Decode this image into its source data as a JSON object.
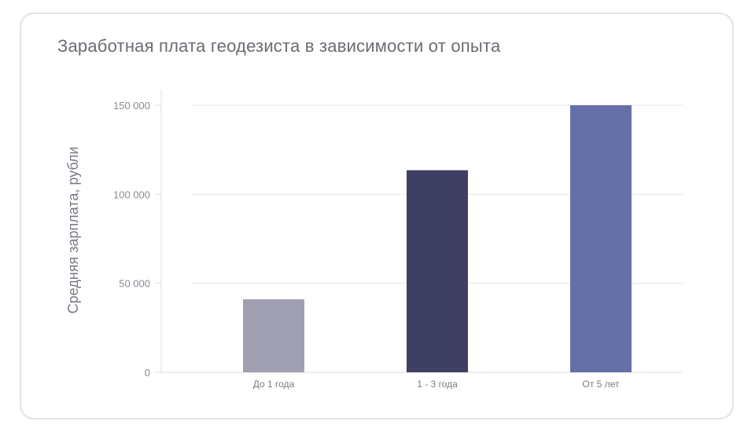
{
  "chart_data": {
    "type": "bar",
    "title": "Заработная плата геодезиста в зависимости от опыта",
    "xlabel": "",
    "ylabel": "Средняя зарплата, рубли",
    "categories": [
      "До 1 года",
      "1 - 3 года",
      "От 5 лет"
    ],
    "values": [
      41000,
      113500,
      150000
    ],
    "colors": [
      "#a09fb1",
      "#3f3f63",
      "#6570a8"
    ],
    "ylim": [
      0,
      150000
    ],
    "yticks": [
      {
        "value": 0,
        "label": "0"
      },
      {
        "value": 50000,
        "label": "50 000"
      },
      {
        "value": 100000,
        "label": "100 000"
      },
      {
        "value": 150000,
        "label": "150 000"
      }
    ],
    "grid": true,
    "legend": "none"
  }
}
